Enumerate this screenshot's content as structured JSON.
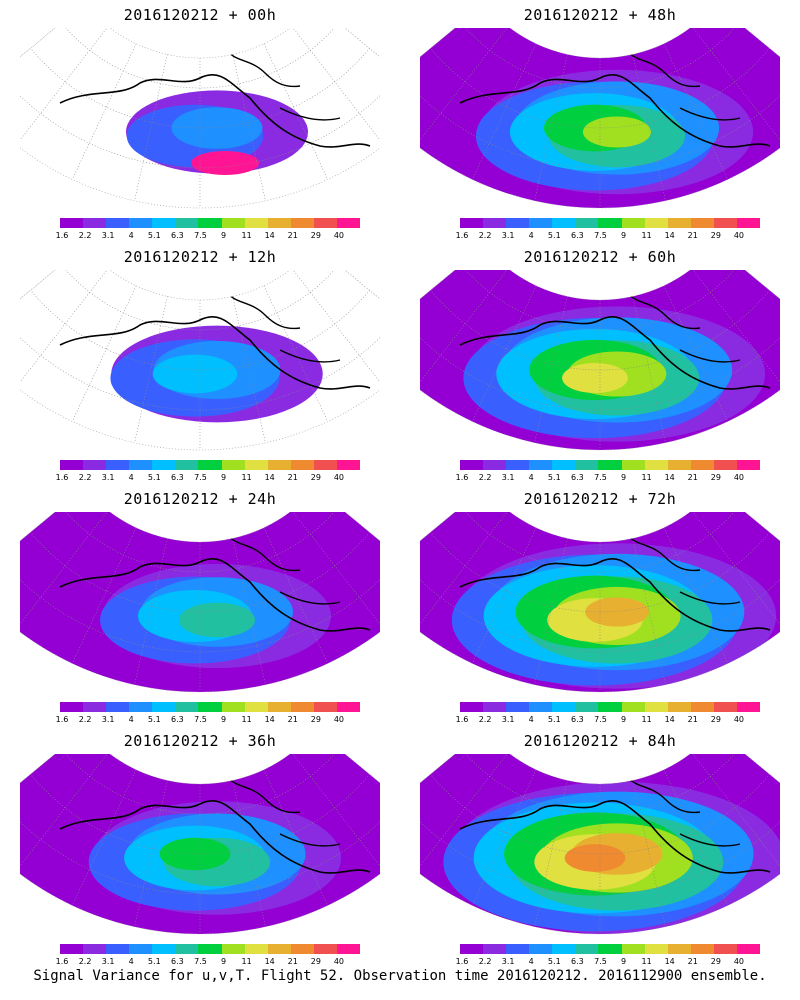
{
  "panels": [
    {
      "title": "2016120212 + 00h",
      "level": 0.1
    },
    {
      "title": "2016120212 + 48h",
      "level": 0.55
    },
    {
      "title": "2016120212 + 12h",
      "level": 0.25
    },
    {
      "title": "2016120212 + 60h",
      "level": 0.68
    },
    {
      "title": "2016120212 + 24h",
      "level": 0.32
    },
    {
      "title": "2016120212 + 72h",
      "level": 0.8
    },
    {
      "title": "2016120212 + 36h",
      "level": 0.42
    },
    {
      "title": "2016120212 + 84h",
      "level": 0.88
    }
  ],
  "colorbar": {
    "ticks": [
      "1.6",
      "2.2",
      "3.1",
      "4",
      "5.1",
      "6.3",
      "7.5",
      "9",
      "11",
      "14",
      "21",
      "29",
      "40"
    ],
    "colors": [
      "#9400d3",
      "#8a2be2",
      "#3a5fff",
      "#1e90ff",
      "#00bfff",
      "#20c0a0",
      "#00d040",
      "#a0e020",
      "#e0e040",
      "#e8b030",
      "#f08a30",
      "#f05050",
      "#ff1493"
    ]
  },
  "footer": "Signal Variance for u,v,T. Flight 52. Observation time 2016120212. 2016112900 ensemble."
}
